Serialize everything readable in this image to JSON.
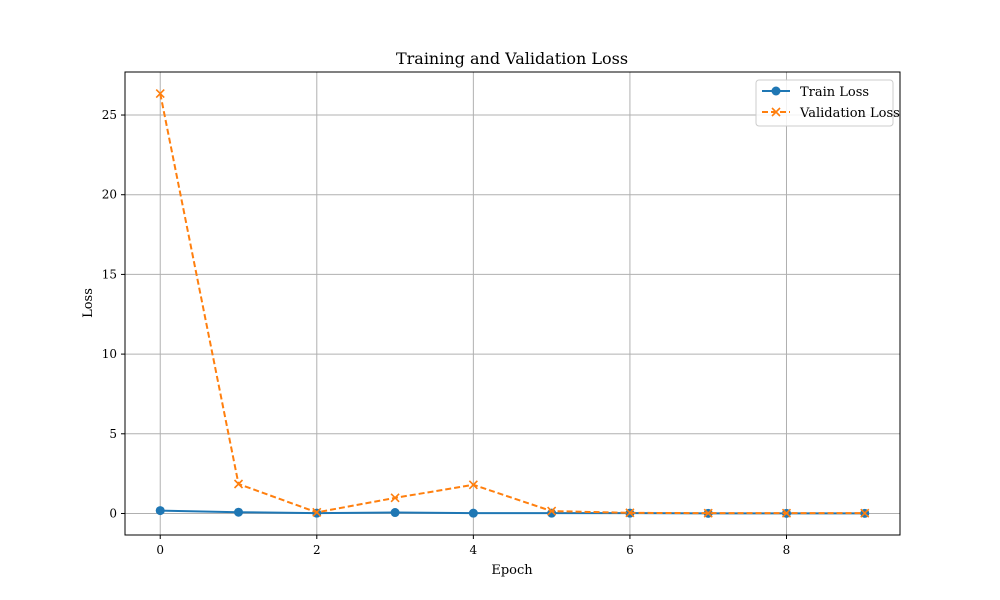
{
  "chart_data": {
    "type": "line",
    "title": "Training and Validation Loss",
    "xlabel": "Epoch",
    "ylabel": "Loss",
    "x": [
      0,
      1,
      2,
      3,
      4,
      5,
      6,
      7,
      8,
      9
    ],
    "xlim": [
      -0.45,
      9.45
    ],
    "ylim": [
      -1.35,
      27.7
    ],
    "x_ticks": [
      0,
      2,
      4,
      6,
      8
    ],
    "y_ticks": [
      0,
      5,
      10,
      15,
      20,
      25
    ],
    "grid": true,
    "legend_position": "top-right",
    "series": [
      {
        "name": "Train Loss",
        "values": [
          0.18,
          0.08,
          0.02,
          0.06,
          0.02,
          0.02,
          0.02,
          0.01,
          0.01,
          0.01
        ],
        "color": "#1f77b4",
        "line_style": "solid",
        "marker": "circle"
      },
      {
        "name": "Validation Loss",
        "values": [
          26.35,
          1.85,
          0.07,
          0.98,
          1.8,
          0.15,
          0.04,
          0.02,
          0.02,
          0.02
        ],
        "color": "#ff7f0e",
        "line_style": "dashed",
        "marker": "x"
      }
    ]
  }
}
